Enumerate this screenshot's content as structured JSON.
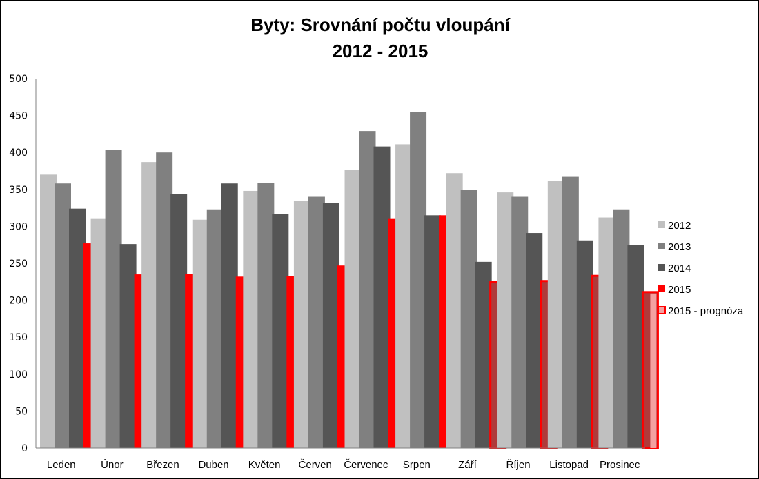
{
  "chart_data": {
    "type": "bar",
    "title": "Byty: Srovnání počtu vloupání",
    "subtitle": "2012 - 2015",
    "xlabel": "",
    "ylabel": "",
    "ylim": [
      0,
      500
    ],
    "yticks": [
      "0",
      "50",
      "100",
      "150",
      "200",
      "250",
      "300",
      "350",
      "400",
      "450",
      "500"
    ],
    "categories": [
      "Leden",
      "Únor",
      "Březen",
      "Duben",
      "Květen",
      "Červen",
      "Červenec",
      "Srpen",
      "Září",
      "Říjen",
      "Listopad",
      "Prosinec"
    ],
    "legend_position": "right",
    "grid": false,
    "series": [
      {
        "name": "2012",
        "color": "#c0c0c0",
        "values": [
          370,
          310,
          387,
          309,
          348,
          334,
          376,
          411,
          372,
          346,
          361,
          312
        ]
      },
      {
        "name": "2013",
        "color": "#808080",
        "values": [
          358,
          403,
          400,
          323,
          359,
          340,
          429,
          455,
          349,
          340,
          367,
          323
        ]
      },
      {
        "name": "2014",
        "color": "#555555",
        "values": [
          324,
          276,
          344,
          358,
          317,
          332,
          408,
          315,
          252,
          291,
          281,
          275
        ]
      },
      {
        "name": "2015",
        "color": "#ff0000",
        "values": [
          277,
          235,
          236,
          232,
          233,
          247,
          310,
          315,
          null,
          null,
          null,
          null
        ]
      }
    ],
    "forecast": {
      "name": "2015 - prognóza",
      "fill": "#b03a3a",
      "legend_fill": "#f4a0a0",
      "stroke": "#ff0000",
      "values": [
        null,
        null,
        null,
        null,
        null,
        null,
        null,
        null,
        225,
        226,
        233,
        211
      ]
    }
  }
}
